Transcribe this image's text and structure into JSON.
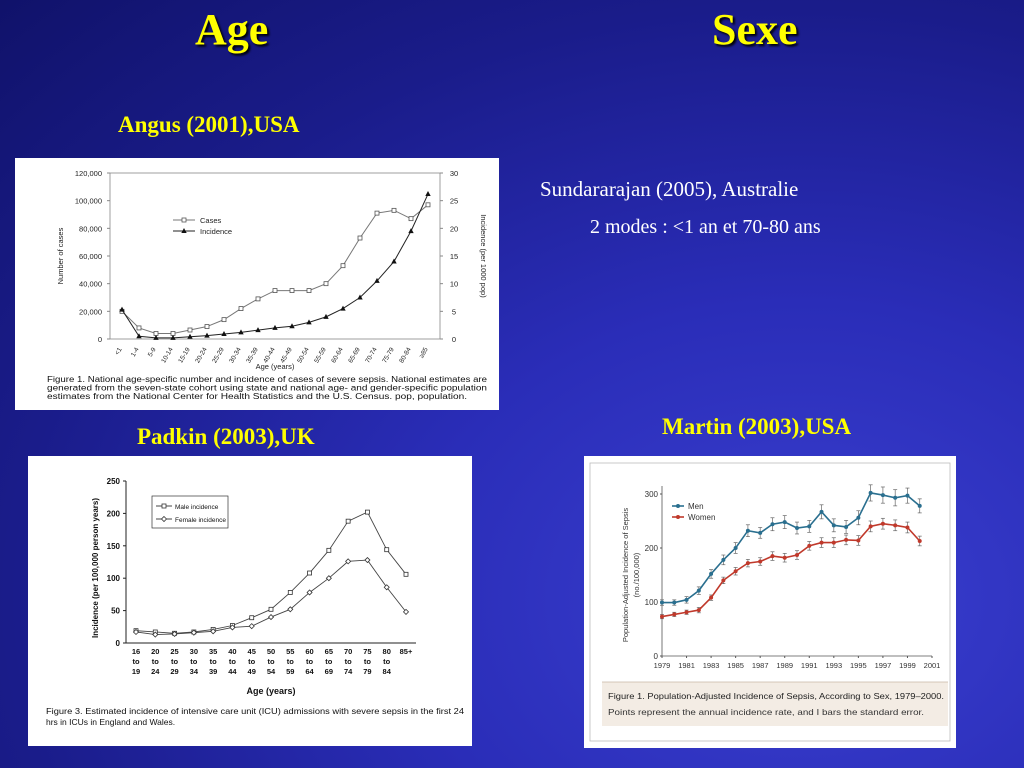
{
  "slide": {
    "title_left": "Age",
    "title_right": "Sexe",
    "angus_caption": "Angus (2001),USA",
    "padkin_caption": "Padkin (2003),UK",
    "martin_caption": "Martin (2003),USA",
    "sund_line1": "Sundararajan (2005), Australie",
    "sund_line2": "2 modes  : <1 an et 70-80 ans"
  },
  "chart_data": [
    {
      "id": "angus",
      "type": "line",
      "categories": [
        "<1",
        "1-4",
        "5-9",
        "10-14",
        "15-19",
        "20-24",
        "25-29",
        "30-34",
        "35-39",
        "40-44",
        "45-49",
        "50-54",
        "55-59",
        "60-64",
        "65-69",
        "70-74",
        "75-79",
        "80-84",
        "≥85"
      ],
      "series": [
        {
          "name": "Cases",
          "axis": "left",
          "marker": "open-square",
          "values": [
            20000,
            8000,
            4000,
            4000,
            6500,
            9000,
            14000,
            22000,
            29000,
            35000,
            35000,
            35000,
            40000,
            53000,
            73000,
            91000,
            93000,
            87000,
            97000
          ]
        },
        {
          "name": "Incidence",
          "axis": "right",
          "marker": "filled-triangle",
          "values": [
            5.3,
            0.5,
            0.2,
            0.2,
            0.4,
            0.6,
            0.9,
            1.2,
            1.6,
            2.0,
            2.3,
            3.0,
            4.0,
            5.5,
            7.5,
            10.5,
            14,
            19.5,
            26.2
          ]
        }
      ],
      "xlabel": "Age (years)",
      "ylabel": "Number of cases",
      "y2label": "Incidence (per 1000 pop)",
      "ylim": [
        0,
        120000
      ],
      "y2lim": [
        0,
        30
      ],
      "yticks": [
        "0",
        "20,000",
        "40,000",
        "60,000",
        "80,000",
        "100,000",
        "120,000"
      ],
      "y2ticks": [
        "0",
        "5",
        "10",
        "15",
        "20",
        "25",
        "30"
      ],
      "legend": "top-left",
      "caption_lines": [
        "Figure 1. National age-specific number and incidence of cases of severe sepsis. National estimates are",
        "generated from the seven-state cohort using state and national age- and gender-specific population",
        "estimates from the National Center for Health Statistics and the U.S. Census. pop, population."
      ]
    },
    {
      "id": "padkin",
      "type": "line",
      "categories": [
        "16\nto\n19",
        "20\nto\n24",
        "25\nto\n29",
        "30\nto\n34",
        "35\nto\n39",
        "40\nto\n44",
        "45\nto\n49",
        "50\nto\n54",
        "55\nto\n59",
        "60\nto\n64",
        "65\nto\n69",
        "70\nto\n74",
        "75\nto\n79",
        "80\nto\n84",
        "85+"
      ],
      "series": [
        {
          "name": "Male incidence",
          "marker": "open-square",
          "values": [
            19,
            17,
            15,
            17,
            21,
            27,
            39,
            52,
            78,
            108,
            143,
            188,
            202,
            144,
            106
          ]
        },
        {
          "name": "Female incidence",
          "marker": "open-diamond",
          "values": [
            17,
            13,
            14,
            16,
            18,
            24,
            26,
            40,
            52,
            78,
            100,
            126,
            128,
            86,
            48
          ]
        }
      ],
      "xlabel": "Age (years)",
      "ylabel": "Incidence (per 100,000 person years)",
      "ylim": [
        0,
        250
      ],
      "yticks": [
        "0",
        "50",
        "100",
        "150",
        "200",
        "250"
      ],
      "legend": "top-left",
      "caption_lines": [
        "Figure 3. Estimated incidence of intensive care unit (ICU) admissions with severe sepsis in the first 24",
        "hrs in ICUs in England and Wales."
      ]
    },
    {
      "id": "martin",
      "type": "line",
      "x": [
        1979,
        1980,
        1981,
        1982,
        1983,
        1984,
        1985,
        1986,
        1987,
        1988,
        1989,
        1990,
        1991,
        1992,
        1993,
        1994,
        1995,
        1996,
        1997,
        1998,
        1999,
        2000
      ],
      "series": [
        {
          "name": "Men",
          "color": "#2a6f8f",
          "values": [
            99,
            99,
            104,
            121,
            152,
            178,
            200,
            232,
            228,
            244,
            248,
            237,
            240,
            267,
            242,
            239,
            256,
            302,
            298,
            293,
            297,
            278
          ],
          "err": [
            5,
            5,
            6,
            7,
            8,
            9,
            10,
            11,
            10,
            12,
            12,
            11,
            11,
            13,
            12,
            12,
            13,
            15,
            15,
            15,
            14,
            13
          ]
        },
        {
          "name": "Women",
          "color": "#c0392b",
          "values": [
            73,
            77,
            81,
            85,
            108,
            140,
            157,
            172,
            175,
            185,
            182,
            187,
            204,
            210,
            210,
            215,
            214,
            240,
            245,
            242,
            238,
            213
          ],
          "err": [
            4,
            4,
            4,
            5,
            5,
            6,
            7,
            7,
            7,
            8,
            8,
            8,
            8,
            9,
            9,
            9,
            9,
            10,
            10,
            10,
            10,
            9
          ]
        }
      ],
      "ylabel": "Population-Adjusted Incidence of Sepsis (no./100,000)",
      "ylim": [
        0,
        300
      ],
      "yticks": [
        "0",
        "100",
        "200",
        "300"
      ],
      "xticks": [
        "1979",
        "1981",
        "1983",
        "1985",
        "1987",
        "1989",
        "1991",
        "1993",
        "1995",
        "1997",
        "1999",
        "2001"
      ],
      "legend": "top-left",
      "caption_title": "Figure 1. Population-Adjusted Incidence of Sepsis, According to Sex, 1979–2000.",
      "caption_body": "Points represent the annual incidence rate, and I bars the standard error."
    }
  ]
}
